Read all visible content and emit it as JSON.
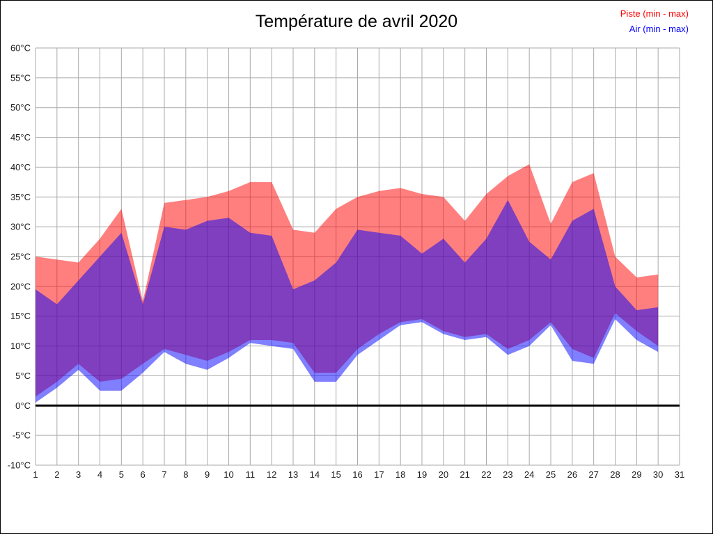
{
  "title": "Température de avril 2020",
  "legend": [
    {
      "id": "piste",
      "label": "Piste (min - max)",
      "color": "#ff0000"
    },
    {
      "id": "air",
      "label": "Air (min - max)",
      "color": "#0000ff"
    }
  ],
  "chart_data": {
    "type": "area",
    "title": "Température de avril 2020",
    "xlabel": "",
    "ylabel": "",
    "xlim": [
      1,
      31
    ],
    "ylim": [
      -10,
      60
    ],
    "grid": true,
    "grid_color": "#aaaaaa",
    "zero_line": {
      "value": 0,
      "color": "#000000",
      "width": 3
    },
    "tick_label_color": "#1a1a1a",
    "x": [
      1,
      2,
      3,
      4,
      5,
      6,
      7,
      8,
      9,
      10,
      11,
      12,
      13,
      14,
      15,
      16,
      17,
      18,
      19,
      20,
      21,
      22,
      23,
      24,
      25,
      26,
      27,
      28,
      29,
      30
    ],
    "x_ticks": [
      {
        "value": 1,
        "label": "1"
      },
      {
        "value": 2,
        "label": "2"
      },
      {
        "value": 3,
        "label": "3"
      },
      {
        "value": 4,
        "label": "4"
      },
      {
        "value": 5,
        "label": "5"
      },
      {
        "value": 6,
        "label": "6"
      },
      {
        "value": 7,
        "label": "7"
      },
      {
        "value": 8,
        "label": "8"
      },
      {
        "value": 9,
        "label": "9"
      },
      {
        "value": 10,
        "label": "10"
      },
      {
        "value": 11,
        "label": "11"
      },
      {
        "value": 12,
        "label": "12"
      },
      {
        "value": 13,
        "label": "13"
      },
      {
        "value": 14,
        "label": "14"
      },
      {
        "value": 15,
        "label": "15"
      },
      {
        "value": 16,
        "label": "16"
      },
      {
        "value": 17,
        "label": "17"
      },
      {
        "value": 18,
        "label": "18"
      },
      {
        "value": 19,
        "label": "19"
      },
      {
        "value": 20,
        "label": "20"
      },
      {
        "value": 21,
        "label": "21"
      },
      {
        "value": 22,
        "label": "22"
      },
      {
        "value": 23,
        "label": "23"
      },
      {
        "value": 24,
        "label": "24"
      },
      {
        "value": 25,
        "label": "25"
      },
      {
        "value": 26,
        "label": "26"
      },
      {
        "value": 27,
        "label": "27"
      },
      {
        "value": 28,
        "label": "28"
      },
      {
        "value": 29,
        "label": "29"
      },
      {
        "value": 30,
        "label": "30"
      },
      {
        "value": 31,
        "label": "31"
      }
    ],
    "y_ticks": [
      {
        "value": -10,
        "label": "-10°C"
      },
      {
        "value": -5,
        "label": "-5°C"
      },
      {
        "value": 0,
        "label": "0°C"
      },
      {
        "value": 5,
        "label": "5°C"
      },
      {
        "value": 10,
        "label": "10°C"
      },
      {
        "value": 15,
        "label": "15°C"
      },
      {
        "value": 20,
        "label": "20°C"
      },
      {
        "value": 25,
        "label": "25°C"
      },
      {
        "value": 30,
        "label": "30°C"
      },
      {
        "value": 35,
        "label": "35°C"
      },
      {
        "value": 40,
        "label": "40°C"
      },
      {
        "value": 45,
        "label": "45°C"
      },
      {
        "value": 50,
        "label": "50°C"
      },
      {
        "value": 55,
        "label": "55°C"
      },
      {
        "value": 60,
        "label": "60°C"
      }
    ],
    "series": [
      {
        "name": "Piste (min - max)",
        "color": "#ff0000",
        "fill_alpha": 0.5,
        "max": [
          25,
          24.5,
          24,
          28,
          33,
          17.5,
          34,
          34.5,
          35,
          36,
          37.5,
          37.5,
          29.5,
          29,
          33,
          35,
          36,
          36.5,
          35.5,
          35,
          31,
          35.5,
          38.5,
          40.5,
          30.5,
          37.5,
          39,
          25,
          21.5,
          22
        ],
        "min": [
          1.5,
          4,
          7,
          4,
          4.5,
          7,
          9.5,
          8.5,
          7.5,
          9,
          11,
          11,
          10.5,
          5.5,
          5.5,
          9.5,
          12,
          14,
          14.5,
          12.5,
          11.5,
          12,
          9.5,
          11,
          14,
          9.5,
          8,
          15.5,
          12.5,
          10
        ]
      },
      {
        "name": "Air (min - max)",
        "color": "#0000ff",
        "fill_alpha": 0.5,
        "max": [
          19.5,
          17,
          21,
          25,
          29,
          17,
          30,
          29.5,
          31,
          31.5,
          29,
          28.5,
          19.5,
          21,
          24,
          29.5,
          29,
          28.5,
          25.5,
          28,
          24,
          28,
          34.5,
          27.5,
          24.5,
          31,
          33,
          20,
          16,
          16.5
        ],
        "min": [
          0.5,
          3,
          6,
          2.5,
          2.5,
          5.5,
          9,
          7,
          6,
          8,
          10.5,
          10,
          9.5,
          4,
          4,
          8.5,
          11,
          13.5,
          14,
          12,
          11,
          11.5,
          8.5,
          10,
          13.5,
          7.5,
          7,
          14.5,
          11,
          9
        ]
      }
    ]
  }
}
